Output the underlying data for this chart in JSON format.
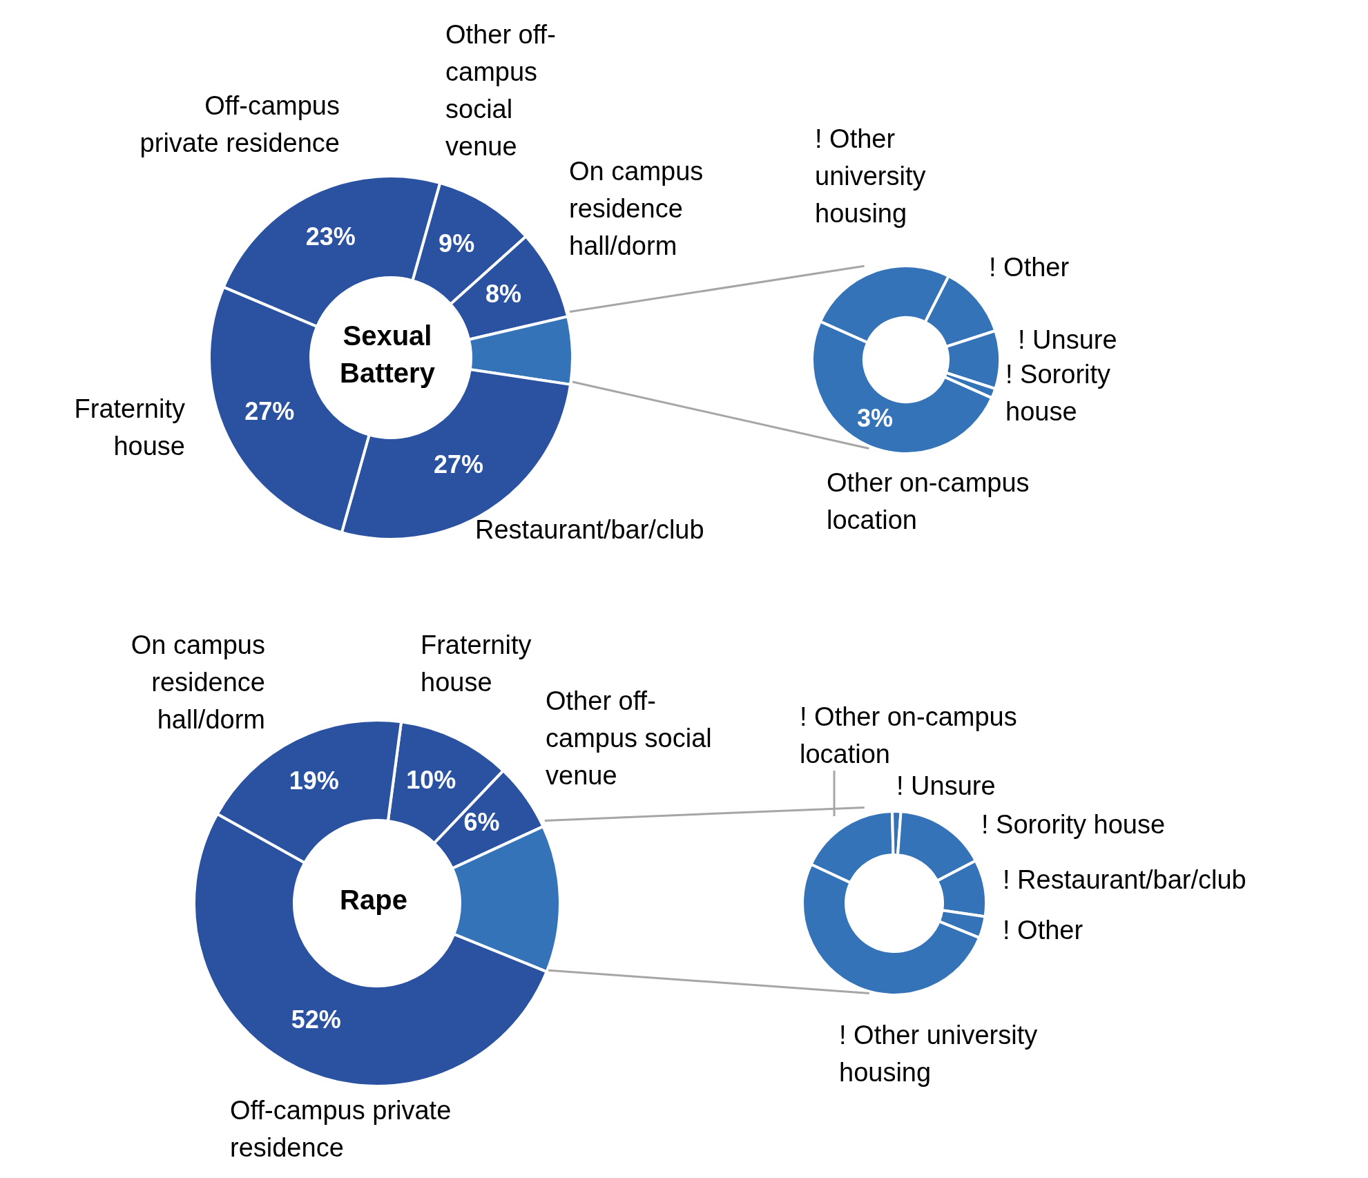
{
  "chart_data": [
    {
      "type": "donut",
      "title": "Sexual Battery",
      "categories": [
        "Other off-campus social venue",
        "On campus residence hall/dorm",
        null,
        "Restaurant/bar/club",
        "Fraternity house",
        "Off-campus private residence"
      ],
      "values": [
        9,
        8,
        6,
        27,
        27,
        23
      ],
      "colors": [
        "#2a52a0",
        "#2a52a0",
        "#3573b9",
        "#2a52a0",
        "#2a52a0",
        "#2a52a0"
      ],
      "value_labels": [
        "9%",
        "8%",
        null,
        "27%",
        "27%",
        "23%"
      ]
    },
    {
      "type": "donut",
      "categories": [
        "! Other university housing",
        "! Other",
        "! Unsure",
        "! Sorority house",
        "Other on-campus location"
      ],
      "values": [
        1.55,
        0.75,
        0.6,
        0.1,
        3
      ],
      "colors": [
        "#3573b9",
        "#3573b9",
        "#3573b9",
        "#3573b9",
        "#3573b9"
      ],
      "value_labels": [
        null,
        null,
        null,
        null,
        "3%"
      ]
    },
    {
      "type": "donut",
      "title": "Rape",
      "categories": [
        "Fraternity house",
        "Other off-campus social venue",
        null,
        "Off-campus private residence",
        "On campus residence hall/dorm"
      ],
      "values": [
        10,
        6,
        13,
        52,
        19
      ],
      "colors": [
        "#2a52a0",
        "#2a52a0",
        "#3573b9",
        "#2a52a0",
        "#2a52a0"
      ],
      "value_labels": [
        "10%",
        "6%",
        null,
        "52%",
        "19%"
      ]
    },
    {
      "type": "donut",
      "categories": [
        "! Other on-campus location",
        "! Unsure",
        "! Sorority house",
        "! Restaurant/bar/club",
        "! Other",
        "! Other university housing"
      ],
      "values": [
        17.7,
        1.5,
        16.2,
        10,
        3.8,
        50.8
      ],
      "colors": [
        "#3573b9",
        "#3573b9",
        "#3573b9",
        "#3573b9",
        "#3573b9",
        "#3573b9"
      ]
    }
  ]
}
